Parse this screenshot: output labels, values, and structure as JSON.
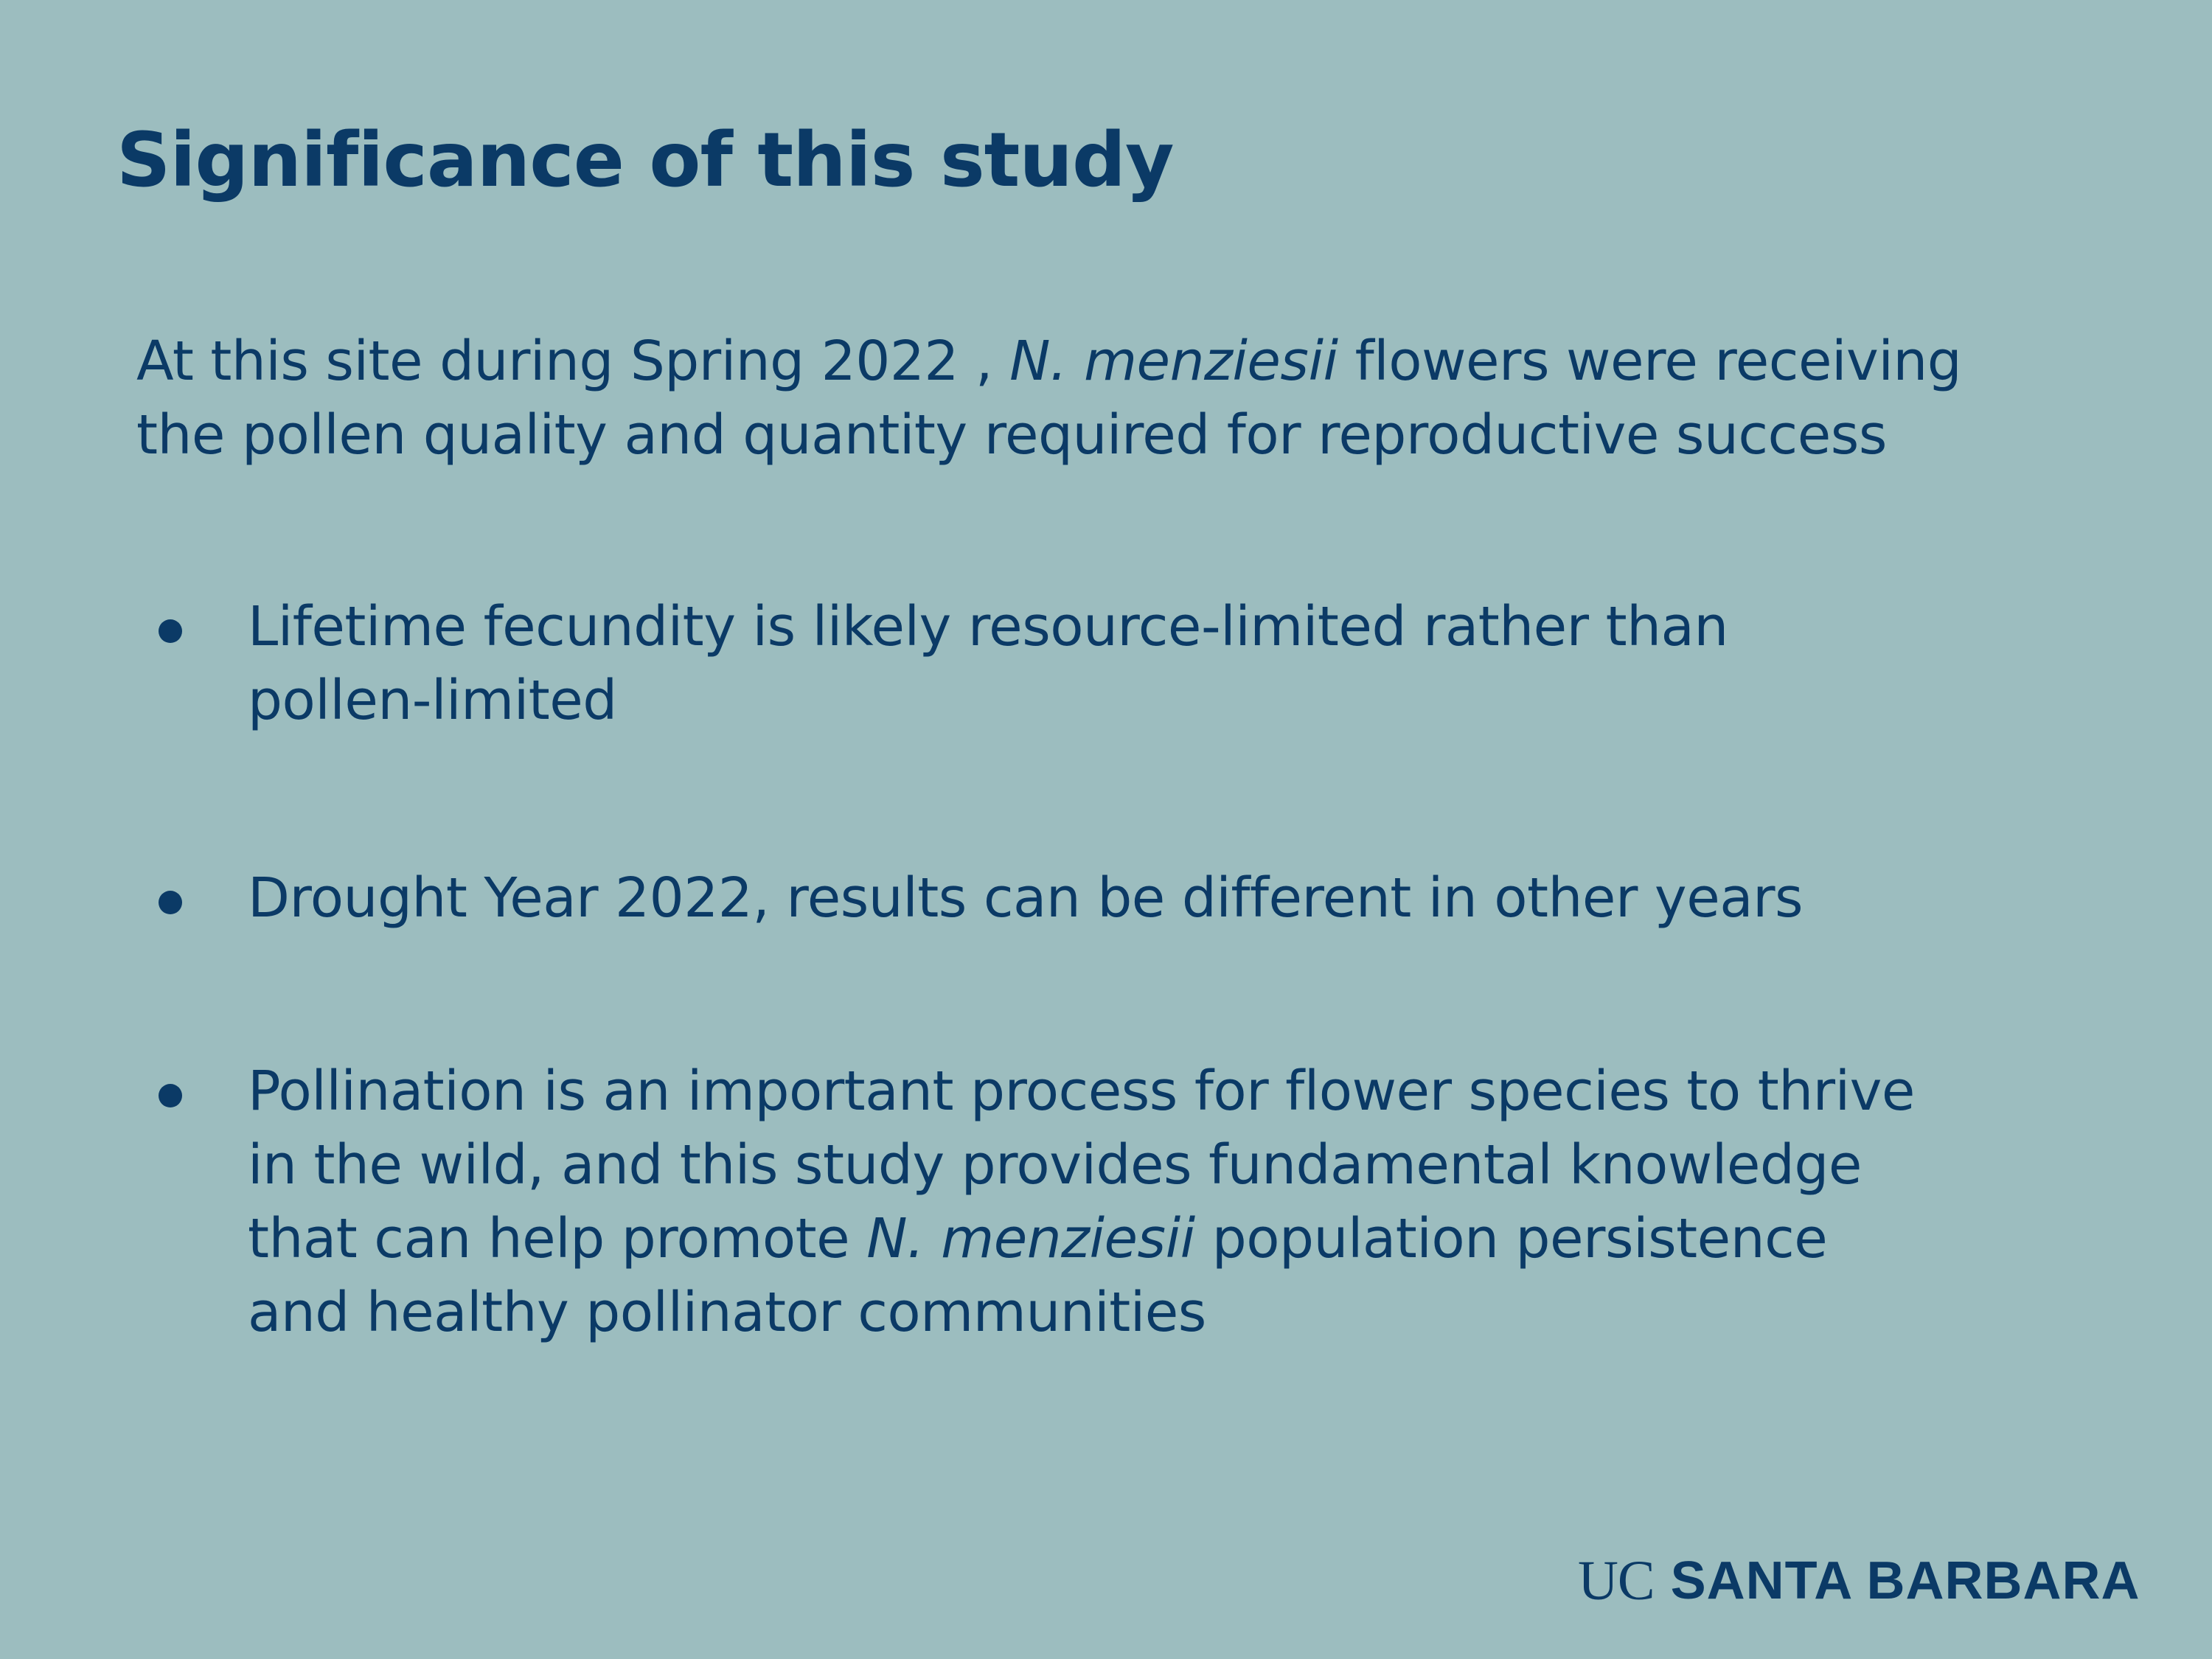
{
  "theme": {
    "background": "#9cbdbf",
    "text": "#0b3a66"
  },
  "slide": {
    "title": "Significance of this study",
    "intro": {
      "line1_part1": "At this site during Spring 2022 , ",
      "line1_species": "N. menziesii",
      "line1_part2": " flowers were receiving",
      "line2": "the pollen quality and quantity required for reproductive success"
    },
    "bullets": [
      {
        "lines": [
          "Lifetime fecundity is likely resource-limited rather than",
          "pollen-limited"
        ]
      },
      {
        "lines": [
          "Drought Year 2022, results can be different in other years"
        ]
      },
      {
        "line1": "Pollination is an important process for flower species to thrive",
        "line2": "in the wild, and this study provides fundamental knowledge",
        "line3_part1": "that can help promote ",
        "line3_species": "N. menziesii",
        "line3_part2": " population persistence",
        "line4": "and healthy pollinator communities"
      }
    ]
  },
  "logo": {
    "prefix": "UC",
    "name": "SANTA BARBARA"
  }
}
